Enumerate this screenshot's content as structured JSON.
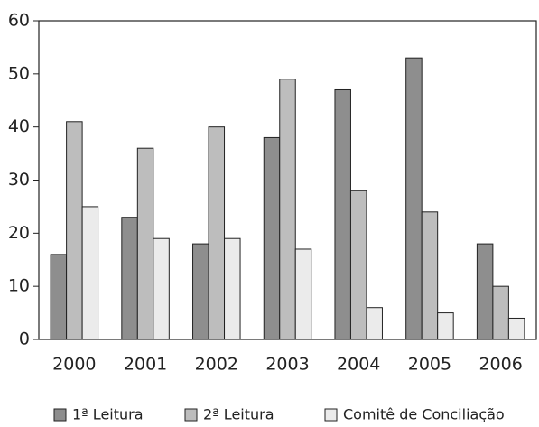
{
  "chart_data": {
    "type": "bar",
    "categories": [
      "2000",
      "2001",
      "2002",
      "2003",
      "2004",
      "2005",
      "2006"
    ],
    "series": [
      {
        "name": "1ª Leitura",
        "color": "#8e8e8e",
        "values": [
          16,
          23,
          18,
          38,
          47,
          53,
          18
        ]
      },
      {
        "name": "2ª Leitura",
        "color": "#bdbdbd",
        "values": [
          41,
          36,
          40,
          49,
          28,
          24,
          10
        ]
      },
      {
        "name": "Comitê de Conciliação",
        "color": "#ebebeb",
        "values": [
          25,
          19,
          19,
          17,
          6,
          5,
          4
        ]
      }
    ],
    "ylim": [
      0,
      60
    ],
    "yticks": [
      0,
      10,
      20,
      30,
      40,
      50,
      60
    ],
    "grid": false,
    "legend": "bottom"
  }
}
